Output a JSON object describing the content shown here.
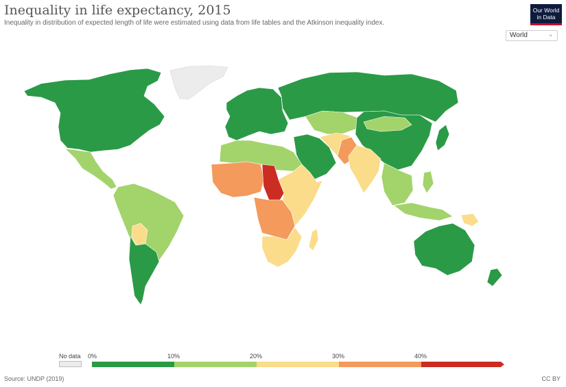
{
  "title": "Inequality in life expectancy, 2015",
  "subtitle": "Inequality in distribution of expected length of life were estimated using data from life tables and the Atkinson inequality index.",
  "logo": {
    "line1": "Our World",
    "line2": "in Data"
  },
  "region_select": {
    "value": "World",
    "icon": "chevron-down-icon"
  },
  "legend": {
    "no_data_label": "No data",
    "ticks": [
      "0%",
      "10%",
      "20%",
      "30%",
      "40%"
    ],
    "bins": [
      {
        "range": "0–10%",
        "color": "#2a9a47"
      },
      {
        "range": "10–20%",
        "color": "#a3d36b"
      },
      {
        "range": "20–30%",
        "color": "#fbdc8a"
      },
      {
        "range": "30–40%",
        "color": "#f39a5c"
      },
      {
        "range": "40%+",
        "color": "#cc2d22"
      }
    ],
    "no_data_color": "#ececec"
  },
  "regions": [
    {
      "name": "North America",
      "bin": 0
    },
    {
      "name": "Greenland",
      "bin": "nodata"
    },
    {
      "name": "Mexico & Central America",
      "bin": 1
    },
    {
      "name": "South America",
      "bin": 1
    },
    {
      "name": "Bolivia",
      "bin": 2
    },
    {
      "name": "Argentina & Chile",
      "bin": 0
    },
    {
      "name": "Europe",
      "bin": 0
    },
    {
      "name": "Russia",
      "bin": 0
    },
    {
      "name": "Central Asia",
      "bin": 1
    },
    {
      "name": "China & East Asia",
      "bin": 0
    },
    {
      "name": "Mongolia",
      "bin": 1
    },
    {
      "name": "Japan",
      "bin": 0
    },
    {
      "name": "Middle East",
      "bin": 0
    },
    {
      "name": "Iran & Afghanistan",
      "bin": 2
    },
    {
      "name": "Pakistan",
      "bin": 3
    },
    {
      "name": "India",
      "bin": 2
    },
    {
      "name": "Southeast Asia",
      "bin": 1
    },
    {
      "name": "North Africa",
      "bin": 1
    },
    {
      "name": "West Africa",
      "bin": 3
    },
    {
      "name": "Chad & Central African Republic",
      "bin": 4
    },
    {
      "name": "Central Africa",
      "bin": 3
    },
    {
      "name": "East Africa",
      "bin": 2
    },
    {
      "name": "Southern Africa",
      "bin": 2
    },
    {
      "name": "Madagascar",
      "bin": 2
    },
    {
      "name": "Australia",
      "bin": 0
    },
    {
      "name": "New Zealand",
      "bin": 0
    },
    {
      "name": "Papua New Guinea",
      "bin": 2
    }
  ],
  "source": "Source: UNDP (2019)",
  "license": "CC BY"
}
